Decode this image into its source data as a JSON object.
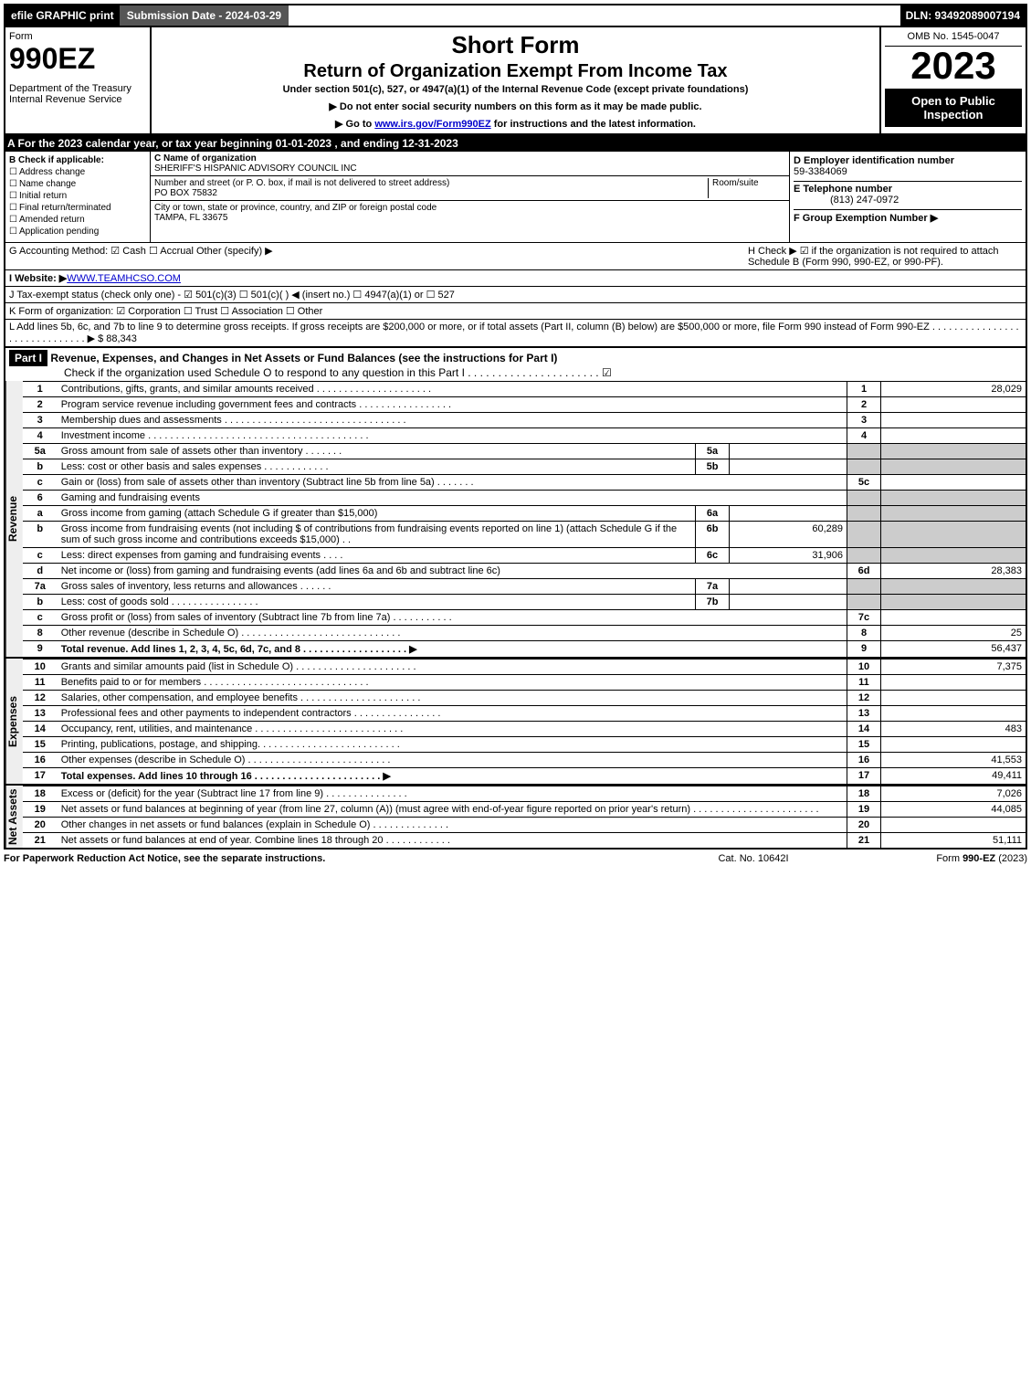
{
  "topbar": {
    "efile": "efile GRAPHIC print",
    "submission": "Submission Date - 2024-03-29",
    "dln": "DLN: 93492089007194"
  },
  "header": {
    "form": "Form",
    "formnum": "990EZ",
    "dept": "Department of the Treasury\nInternal Revenue Service",
    "title1": "Short Form",
    "title2": "Return of Organization Exempt From Income Tax",
    "subtitle": "Under section 501(c), 527, or 4947(a)(1) of the Internal Revenue Code (except private foundations)",
    "note1": "▶ Do not enter social security numbers on this form as it may be made public.",
    "note2": "▶ Go to www.irs.gov/Form990EZ for instructions and the latest information.",
    "note2_link": "www.irs.gov/Form990EZ",
    "omb": "OMB No. 1545-0047",
    "year": "2023",
    "open": "Open to Public Inspection"
  },
  "A": "A  For the 2023 calendar year, or tax year beginning 01-01-2023 , and ending 12-31-2023",
  "B": {
    "label": "B  Check if applicable:",
    "opts": [
      "Address change",
      "Name change",
      "Initial return",
      "Final return/terminated",
      "Amended return",
      "Application pending"
    ]
  },
  "C": {
    "label": "C Name of organization",
    "name": "SHERIFF'S HISPANIC ADVISORY COUNCIL INC",
    "street_label": "Number and street (or P. O. box, if mail is not delivered to street address)",
    "room": "Room/suite",
    "street": "PO BOX 75832",
    "city_label": "City or town, state or province, country, and ZIP or foreign postal code",
    "city": "TAMPA, FL  33675"
  },
  "D": {
    "label": "D Employer identification number",
    "val": "59-3384069"
  },
  "E": {
    "label": "E Telephone number",
    "val": "(813) 247-0972"
  },
  "F": {
    "label": "F Group Exemption Number  ▶"
  },
  "G": "G Accounting Method:  ☑ Cash  ☐ Accrual  Other (specify) ▶",
  "H": "H   Check ▶ ☑ if the organization is not required to attach Schedule B (Form 990, 990-EZ, or 990-PF).",
  "I": "I Website: ▶",
  "I_val": "WWW.TEAMHCSO.COM",
  "J": "J Tax-exempt status (check only one) -  ☑ 501(c)(3)  ☐ 501(c)(  ) ◀ (insert no.)  ☐ 4947(a)(1) or  ☐ 527",
  "K": "K Form of organization:  ☑ Corporation  ☐ Trust  ☐ Association  ☐ Other",
  "L": "L Add lines 5b, 6c, and 7b to line 9 to determine gross receipts. If gross receipts are $200,000 or more, or if total assets (Part II, column (B) below) are $500,000 or more, file Form 990 instead of Form 990-EZ . . . . . . . . . . . . . . . . . . . . . . . . . . . . . . ▶ $ 88,343",
  "part1_hdr": "Revenue, Expenses, and Changes in Net Assets or Fund Balances (see the instructions for Part I)",
  "part1_sub": "Check if the organization used Schedule O to respond to any question in this Part I . . . . . . . . . . . . . . . . . . . . . .   ☑",
  "part1": "Part I",
  "vlabels": {
    "rev": "Revenue",
    "exp": "Expenses",
    "net": "Net Assets"
  },
  "lines": {
    "1": {
      "n": "1",
      "t": "Contributions, gifts, grants, and similar amounts received . . . . . . . . . . . . . . . . . . . . .",
      "r": "1",
      "v": "28,029"
    },
    "2": {
      "n": "2",
      "t": "Program service revenue including government fees and contracts . . . . . . . . . . . . . . . . .",
      "r": "2",
      "v": ""
    },
    "3": {
      "n": "3",
      "t": "Membership dues and assessments . . . . . . . . . . . . . . . . . . . . . . . . . . . . . . . . .",
      "r": "3",
      "v": ""
    },
    "4": {
      "n": "4",
      "t": "Investment income . . . . . . . . . . . . . . . . . . . . . . . . . . . . . . . . . . . . . . . .",
      "r": "4",
      "v": ""
    },
    "5a": {
      "n": "5a",
      "t": "Gross amount from sale of assets other than inventory . . . . . . .",
      "m": "5a",
      "mv": ""
    },
    "5b": {
      "n": "b",
      "t": "Less: cost or other basis and sales expenses . . . . . . . . . . . .",
      "m": "5b",
      "mv": ""
    },
    "5c": {
      "n": "c",
      "t": "Gain or (loss) from sale of assets other than inventory (Subtract line 5b from line 5a) . . . . . . .",
      "r": "5c",
      "v": ""
    },
    "6": {
      "n": "6",
      "t": "Gaming and fundraising events"
    },
    "6a": {
      "n": "a",
      "t": "Gross income from gaming (attach Schedule G if greater than $15,000)",
      "m": "6a",
      "mv": ""
    },
    "6b": {
      "n": "b",
      "t": "Gross income from fundraising events (not including $                    of contributions from fundraising events reported on line 1) (attach Schedule G if the sum of such gross income and contributions exceeds $15,000)    . .",
      "m": "6b",
      "mv": "60,289"
    },
    "6c": {
      "n": "c",
      "t": "Less: direct expenses from gaming and fundraising events        . . . .",
      "m": "6c",
      "mv": "31,906"
    },
    "6d": {
      "n": "d",
      "t": "Net income or (loss) from gaming and fundraising events (add lines 6a and 6b and subtract line 6c)",
      "r": "6d",
      "v": "28,383"
    },
    "7a": {
      "n": "7a",
      "t": "Gross sales of inventory, less returns and allowances . . . . . .",
      "m": "7a",
      "mv": ""
    },
    "7b": {
      "n": "b",
      "t": "Less: cost of goods sold         . . . . . . . . . . . . . . . .",
      "m": "7b",
      "mv": ""
    },
    "7c": {
      "n": "c",
      "t": "Gross profit or (loss) from sales of inventory (Subtract line 7b from line 7a) . . . . . . . . . . .",
      "r": "7c",
      "v": ""
    },
    "8": {
      "n": "8",
      "t": "Other revenue (describe in Schedule O) . . . . . . . . . . . . . . . . . . . . . . . . . . . . .",
      "r": "8",
      "v": "25"
    },
    "9": {
      "n": "9",
      "t": "Total revenue. Add lines 1, 2, 3, 4, 5c, 6d, 7c, and 8  . . . . . . . . . . . . . . . . . . .   ▶",
      "r": "9",
      "v": "56,437",
      "b": true
    },
    "10": {
      "n": "10",
      "t": "Grants and similar amounts paid (list in Schedule O) . . . . . . . . . . . . . . . . . . . . . .",
      "r": "10",
      "v": "7,375"
    },
    "11": {
      "n": "11",
      "t": "Benefits paid to or for members     . . . . . . . . . . . . . . . . . . . . . . . . . . . . . .",
      "r": "11",
      "v": ""
    },
    "12": {
      "n": "12",
      "t": "Salaries, other compensation, and employee benefits . . . . . . . . . . . . . . . . . . . . . .",
      "r": "12",
      "v": ""
    },
    "13": {
      "n": "13",
      "t": "Professional fees and other payments to independent contractors . . . . . . . . . . . . . . . .",
      "r": "13",
      "v": ""
    },
    "14": {
      "n": "14",
      "t": "Occupancy, rent, utilities, and maintenance . . . . . . . . . . . . . . . . . . . . . . . . . . .",
      "r": "14",
      "v": "483"
    },
    "15": {
      "n": "15",
      "t": "Printing, publications, postage, and shipping. . . . . . . . . . . . . . . . . . . . . . . . . .",
      "r": "15",
      "v": ""
    },
    "16": {
      "n": "16",
      "t": "Other expenses (describe in Schedule O)    . . . . . . . . . . . . . . . . . . . . . . . . . .",
      "r": "16",
      "v": "41,553"
    },
    "17": {
      "n": "17",
      "t": "Total expenses. Add lines 10 through 16    . . . . . . . . . . . . . . . . . . . . . . .   ▶",
      "r": "17",
      "v": "49,411",
      "b": true
    },
    "18": {
      "n": "18",
      "t": "Excess or (deficit) for the year (Subtract line 17 from line 9)      . . . . . . . . . . . . . . .",
      "r": "18",
      "v": "7,026"
    },
    "19": {
      "n": "19",
      "t": "Net assets or fund balances at beginning of year (from line 27, column (A)) (must agree with end-of-year figure reported on prior year's return) . . . . . . . . . . . . . . . . . . . . . . .",
      "r": "19",
      "v": "44,085"
    },
    "20": {
      "n": "20",
      "t": "Other changes in net assets or fund balances (explain in Schedule O) . . . . . . . . . . . . . .",
      "r": "20",
      "v": ""
    },
    "21": {
      "n": "21",
      "t": "Net assets or fund balances at end of year. Combine lines 18 through 20 . . . . . . . . . . . .",
      "r": "21",
      "v": "51,111"
    }
  },
  "footer": {
    "l": "For Paperwork Reduction Act Notice, see the separate instructions.",
    "c": "Cat. No. 10642I",
    "r": "Form 990-EZ (2023)"
  }
}
